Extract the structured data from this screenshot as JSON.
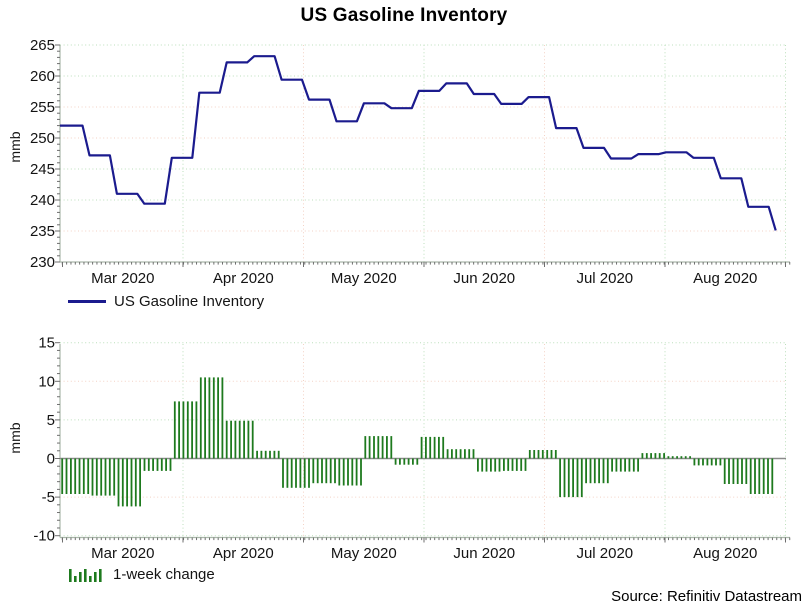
{
  "title": "US Gasoline Inventory",
  "source_note": "Source: Refinitiv Datastream",
  "months": [
    "Mar 2020",
    "Apr 2020",
    "May 2020",
    "Jun 2020",
    "Jul 2020",
    "Aug 2020"
  ],
  "colors": {
    "line": "#1b1b8e",
    "bar": "#1e7a1e",
    "grid_green": "#bcdfbc",
    "grid_pink": "#f3d2c5",
    "axis": "#aab8aa",
    "tick": "#6e6e6e",
    "zero_line": "#8a8a8a",
    "text": "#141414"
  },
  "top_chart": {
    "ylabel": "mmb",
    "legend_label": "US Gasoline Inventory",
    "yticks": [
      265,
      260,
      255,
      250,
      245,
      240,
      235,
      230
    ]
  },
  "bottom_chart": {
    "ylabel": "mmb",
    "legend_label": "1-week change",
    "yticks": [
      15,
      10,
      5,
      0,
      -5,
      -10
    ]
  },
  "chart_data": [
    {
      "type": "line",
      "style": "step-weekly",
      "title": "US Gasoline Inventory",
      "ylabel": "mmb",
      "ylim": [
        230,
        265
      ],
      "x_range": [
        "late Feb 2020",
        "late Aug 2020"
      ],
      "x_tick_labels": [
        "Mar 2020",
        "Apr 2020",
        "May 2020",
        "Jun 2020",
        "Jul 2020",
        "Aug 2020"
      ],
      "legend": "US Gasoline Inventory",
      "legend_position": "bottom-left",
      "grid": true,
      "weekly_values": [
        252.0,
        247.2,
        241.0,
        239.4,
        246.8,
        257.3,
        262.2,
        263.2,
        259.4,
        256.2,
        252.7,
        255.6,
        254.8,
        257.6,
        258.8,
        257.1,
        255.5,
        256.6,
        251.6,
        248.4,
        246.7,
        247.4,
        247.7,
        246.8,
        243.5,
        238.9,
        235.1
      ]
    },
    {
      "type": "bar",
      "style": "daily-striped-weekly-value",
      "title": "1-week change",
      "ylabel": "mmb",
      "ylim": [
        -10,
        15
      ],
      "x_tick_labels": [
        "Mar 2020",
        "Apr 2020",
        "May 2020",
        "Jun 2020",
        "Jul 2020",
        "Aug 2020"
      ],
      "legend": "1-week change",
      "legend_position": "bottom-left",
      "grid": true,
      "weekly_values": [
        -4.6,
        -4.8,
        -6.2,
        -1.6,
        7.4,
        10.5,
        4.9,
        1.0,
        -3.8,
        -3.2,
        -3.5,
        2.9,
        -0.8,
        2.8,
        1.2,
        -1.7,
        -1.6,
        1.1,
        -5.0,
        -3.2,
        -1.7,
        0.7,
        0.3,
        -0.9,
        -3.3,
        -4.6,
        -3.8
      ]
    }
  ]
}
